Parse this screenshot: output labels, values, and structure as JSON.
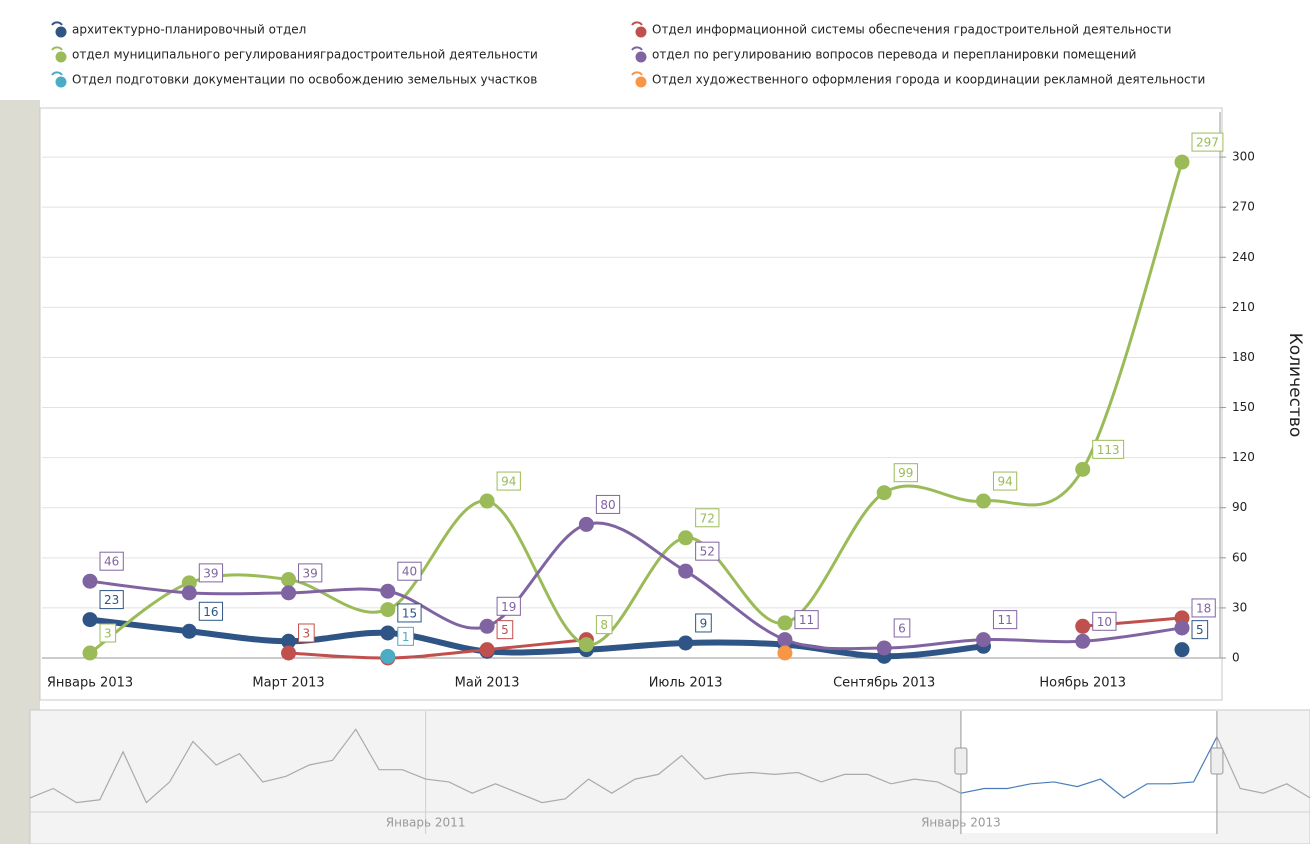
{
  "chart_data": {
    "type": "line",
    "y_title": "Количество",
    "categories": [
      "Январь 2013",
      null,
      "Март 2013",
      null,
      "Май 2013",
      null,
      "Июль 2013",
      null,
      "Сентябрь 2013",
      null,
      "Ноябрь 2013",
      null
    ],
    "ylim": [
      0,
      330
    ],
    "yticks": [
      0,
      30,
      60,
      90,
      120,
      150,
      180,
      210,
      240,
      270,
      300
    ],
    "grid": true,
    "series": [
      {
        "name": "архитектурно-планировочный отдел",
        "color": "#2e5585",
        "values": [
          23,
          16,
          10,
          15,
          4,
          5,
          9,
          8,
          1,
          7,
          null,
          5
        ],
        "value_labels": [
          "23",
          "16",
          null,
          "15",
          null,
          null,
          "9",
          null,
          null,
          null,
          null,
          "5"
        ]
      },
      {
        "name": "Отдел информационной системы обеспечения градостроительной деятельности",
        "color": "#c0504d",
        "values": [
          null,
          null,
          3,
          0,
          5,
          11,
          null,
          null,
          null,
          null,
          19,
          24
        ],
        "value_labels": [
          null,
          null,
          "3",
          null,
          "5",
          null,
          null,
          null,
          null,
          null,
          null,
          null
        ]
      },
      {
        "name": "отдел муниципального регулированиягра­достроительной деятельности",
        "color": "#9bbb59",
        "values": [
          3,
          45,
          47,
          29,
          94,
          8,
          72,
          21,
          99,
          94,
          113,
          297
        ],
        "value_labels": [
          "3",
          null,
          null,
          null,
          "94",
          "8",
          "72",
          null,
          "99",
          "94",
          "113",
          "297"
        ]
      },
      {
        "name": "отдел по регулированию вопросов перевода и перепланировки помещений",
        "color": "#8064a2",
        "values": [
          46,
          39,
          39,
          40,
          19,
          80,
          52,
          11,
          6,
          11,
          10,
          18
        ],
        "value_labels": [
          "46",
          "39",
          "39",
          "40",
          "19",
          "80",
          "52",
          "11",
          "6",
          "11",
          "10",
          "18"
        ]
      },
      {
        "name": "Отдел подготовки документации по освобождению земельных участков",
        "color": "#4bacc6",
        "values": [
          null,
          null,
          null,
          1,
          null,
          null,
          null,
          null,
          null,
          null,
          null,
          null
        ],
        "value_labels": [
          null,
          null,
          null,
          "1",
          null,
          null,
          null,
          null,
          null,
          null,
          null,
          null
        ]
      },
      {
        "name": "Отдел художественного оформления города и координации рекламной деятельности",
        "color": "#f79646",
        "values": [
          null,
          null,
          null,
          null,
          null,
          null,
          null,
          3,
          null,
          null,
          null,
          null
        ],
        "value_labels": [
          null,
          null,
          null,
          null,
          null,
          null,
          null,
          null,
          null,
          null,
          null,
          null
        ]
      }
    ],
    "navigator": {
      "color": "#aaaaaa",
      "selected_color": "#4a7ebb",
      "ylim": [
        0,
        100
      ],
      "categories": [
        null,
        null,
        null,
        null,
        null,
        null,
        null,
        null,
        null,
        null,
        null,
        null,
        null,
        null,
        null,
        null,
        null,
        "Январь 2011",
        null,
        null,
        null,
        null,
        null,
        null,
        null,
        null,
        null,
        null,
        null,
        null,
        null,
        null,
        null,
        null,
        null,
        null,
        null,
        null,
        null,
        null,
        "Январь 2013",
        null,
        null,
        null,
        null,
        null,
        null,
        null,
        null,
        null,
        null,
        null,
        null,
        null,
        null,
        null
      ],
      "values": [
        15,
        25,
        10,
        13,
        64,
        10,
        32,
        75,
        50,
        62,
        32,
        38,
        50,
        55,
        88,
        45,
        45,
        35,
        32,
        20,
        30,
        20,
        10,
        14,
        35,
        20,
        35,
        40,
        60,
        35,
        40,
        42,
        40,
        42,
        32,
        40,
        40,
        30,
        35,
        32,
        20,
        25,
        25,
        30,
        32,
        27,
        35,
        15,
        30,
        30,
        32,
        80,
        25,
        20,
        30,
        15
      ]
    }
  }
}
